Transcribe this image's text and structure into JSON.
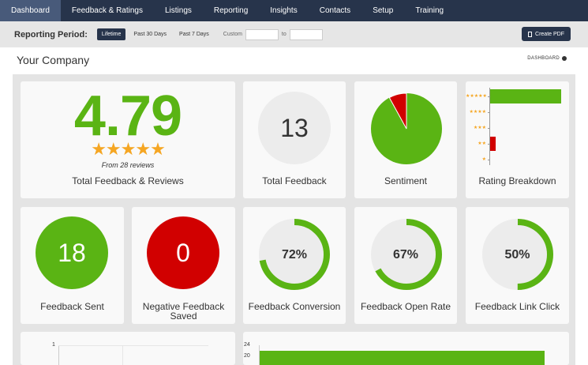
{
  "nav": {
    "items": [
      "Dashboard",
      "Feedback & Ratings",
      "Listings",
      "Reporting",
      "Insights",
      "Contacts",
      "Setup",
      "Training"
    ]
  },
  "period": {
    "label": "Reporting Period:",
    "options": [
      "Lifetime",
      "Past 30 Days",
      "Past 7 Days"
    ],
    "custom_label": "Custom",
    "to_label": "to",
    "from_value": "",
    "to_value": "",
    "pdf_label": "Create PDF"
  },
  "company": {
    "name": "Your Company",
    "dashboard_link": "DASHBOARD"
  },
  "cards": {
    "total_reviews": {
      "value": "4.79",
      "stars": "★★★★★",
      "rating": 4.79,
      "from": "From 28 reviews",
      "label": "Total Feedback & Reviews"
    },
    "total_feedback": {
      "value": "13",
      "label": "Total Feedback"
    },
    "sentiment": {
      "label": "Sentiment",
      "positive_fraction": 0.92,
      "positive_color": "#5ab414",
      "negative_color": "#d10000"
    },
    "rating_breakdown": {
      "label": "Rating Breakdown",
      "rows": [
        {
          "stars": "★★★★★",
          "fraction": 1.0,
          "color": "#5ab414"
        },
        {
          "stars": "★★★★",
          "fraction": 0,
          "color": "#5ab414"
        },
        {
          "stars": "★★★",
          "fraction": 0,
          "color": "#5ab414"
        },
        {
          "stars": "★★",
          "fraction": 0.08,
          "color": "#d10000"
        },
        {
          "stars": "★",
          "fraction": 0,
          "color": "#d10000"
        }
      ]
    },
    "feedback_sent": {
      "value": "18",
      "label": "Feedback Sent",
      "color": "#5ab414"
    },
    "negative_saved": {
      "value": "0",
      "label": "Negative Feedback Saved",
      "color": "#d10000"
    },
    "conversion": {
      "value": "72%",
      "fraction": 0.72,
      "label": "Feedback Conversion"
    },
    "open_rate": {
      "value": "67%",
      "fraction": 0.67,
      "label": "Feedback Open Rate"
    },
    "link_click": {
      "value": "50%",
      "fraction": 0.5,
      "label": "Feedback Link Click"
    }
  },
  "bottom": {
    "left_tick": "1",
    "right_ticks": [
      "24",
      "20"
    ]
  },
  "colors": {
    "green": "#5ab414",
    "red": "#d10000",
    "navy": "#27344b"
  }
}
